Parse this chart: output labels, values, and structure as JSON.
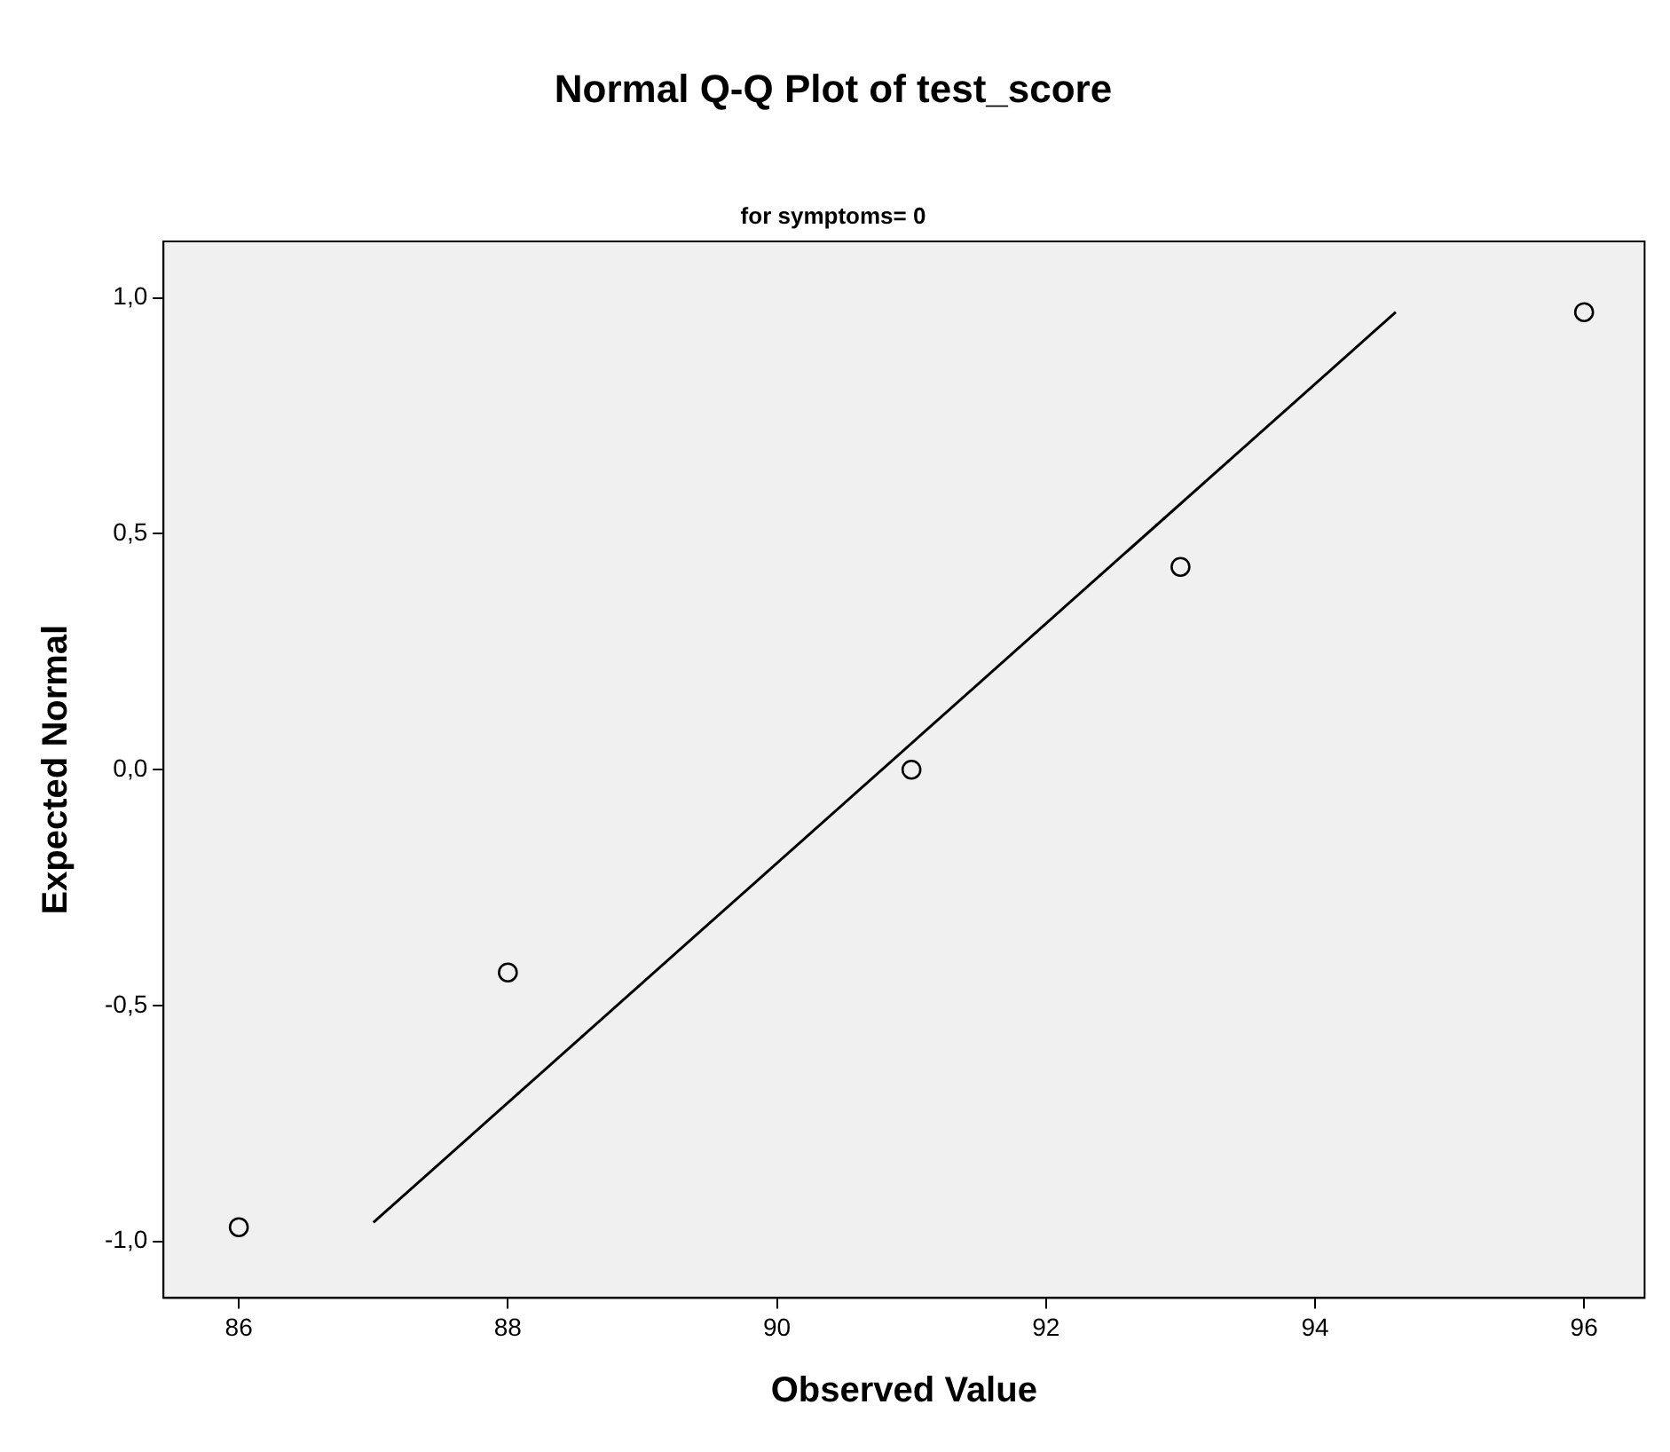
{
  "chart_data": {
    "type": "scatter",
    "title": "Normal Q-Q Plot of test_score",
    "subtitle": "for symptoms= 0",
    "xlabel": "Observed Value",
    "ylabel": "Expected Normal",
    "series": [
      {
        "color": "#000000",
        "marker": "circle",
        "x": [
          86,
          88,
          91,
          93,
          96
        ],
        "values": [
          -0.97,
          -0.43,
          0.0,
          0.43,
          0.97
        ]
      },
      {
        "type": "line",
        "color": "#000000",
        "marker": "none",
        "line_style": "solid",
        "x": [
          87,
          94.6
        ],
        "values": [
          -0.96,
          0.97
        ]
      }
    ],
    "xlim": [
      85.44,
      96.45
    ],
    "xticks": [
      86,
      88,
      90,
      92,
      94,
      96
    ],
    "ylim": [
      -1.12,
      1.12
    ],
    "yticks": [
      {
        "value": -1,
        "label": "-1,0"
      },
      {
        "value": -0.5,
        "label": "-0,5"
      },
      {
        "value": 0,
        "label": "0,0"
      },
      {
        "value": 0.5,
        "label": "0,5"
      },
      {
        "value": 1,
        "label": "1,0"
      }
    ],
    "legend": false
  }
}
